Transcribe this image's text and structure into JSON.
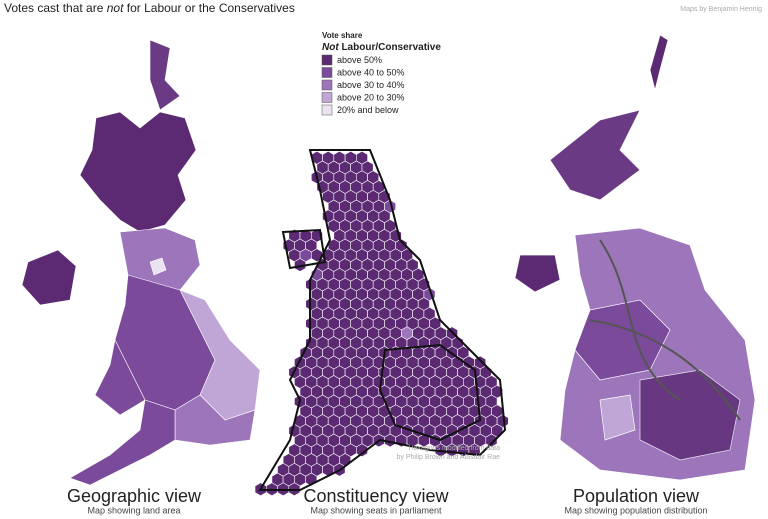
{
  "header": {
    "title_parts": [
      "Votes cast that are ",
      "not",
      " for Labour or the Conservatives"
    ],
    "credit": "Maps by Benjamin Hennig"
  },
  "legend": {
    "title": "Vote share",
    "subtitle_parts": [
      "Not",
      " Labour/Conservative"
    ],
    "items": [
      {
        "label": "above 50%",
        "color": "#5b2a73"
      },
      {
        "label": "above 40 to 50%",
        "color": "#7b4a9b"
      },
      {
        "label": "above 30 to 40%",
        "color": "#9c75bb"
      },
      {
        "label": "above 20 to 30%",
        "color": "#c0a6d6"
      },
      {
        "label": "20% and below",
        "color": "#ebe3f1"
      }
    ]
  },
  "maps": [
    {
      "title": "Geographic view",
      "subtitle": "Map showing land area"
    },
    {
      "title": "Constituency view",
      "subtitle": "Map showing seats in parliament",
      "note_lines": [
        "Hexagons modified from data",
        "by Philip Brown and Alasdair Rae"
      ]
    },
    {
      "title": "Population view",
      "subtitle": "Map showing population distribution"
    }
  ]
}
